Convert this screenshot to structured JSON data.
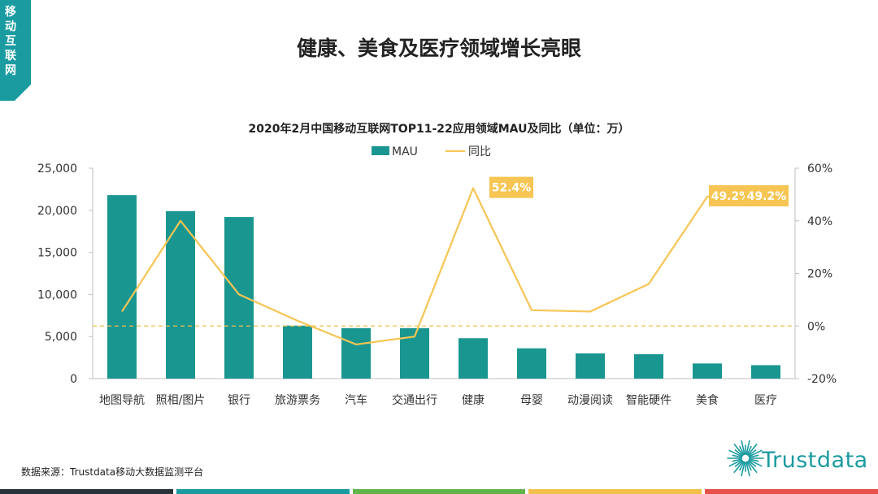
{
  "corner_tab": {
    "label": "移动互联网",
    "color": "#1a9ba0"
  },
  "page_title": "健康、美食及医疗领域增长亮眼",
  "source": "数据来源：Trustdata移动大数据监测平台",
  "logo": {
    "text": "Trustdata",
    "color": "#1a9ba0"
  },
  "bottom_strip": {
    "colors": [
      "#263238",
      "#1a9ba0",
      "#5fb54a",
      "#f3c04c",
      "#e8504a"
    ]
  },
  "chart_data": {
    "type": "bar+line",
    "title": "2020年2月中国移动互联网TOP11-22应用领域MAU及同比（单位：万）",
    "categories": [
      "地图导航",
      "照相/图片",
      "银行",
      "旅游票务",
      "汽车",
      "交通出行",
      "健康",
      "母婴",
      "动漫阅读",
      "智能硬件",
      "美食",
      "医疗"
    ],
    "series": [
      {
        "name": "MAU",
        "type": "bar",
        "axis": "left",
        "color": "#1a9690",
        "values": [
          21800,
          19900,
          19200,
          6300,
          6000,
          6000,
          4800,
          3600,
          3000,
          2900,
          1800,
          1600
        ]
      },
      {
        "name": "同比",
        "type": "line",
        "axis": "right",
        "color": "#f6c553",
        "values": [
          5.5,
          40.0,
          12.0,
          2.0,
          -7.0,
          -4.0,
          52.4,
          6.0,
          5.5,
          16.0,
          49.2,
          49.2
        ]
      }
    ],
    "left_axis": {
      "min": 0,
      "max": 25000,
      "ticks": [
        "0",
        "5,000",
        "10,000",
        "15,000",
        "20,000",
        "25,000"
      ]
    },
    "right_axis": {
      "min": -20,
      "max": 60,
      "ticks": [
        "-20%",
        "0%",
        "20%",
        "40%",
        "60%"
      ]
    },
    "data_labels": [
      {
        "category_index": 6,
        "text": "52.4%"
      },
      {
        "category_index": 10,
        "text": "49.2%"
      },
      {
        "category_index": 11,
        "text": "49.2%"
      }
    ],
    "legend": {
      "position": "top",
      "items": [
        "MAU",
        "同比"
      ]
    },
    "zero_line": true
  }
}
